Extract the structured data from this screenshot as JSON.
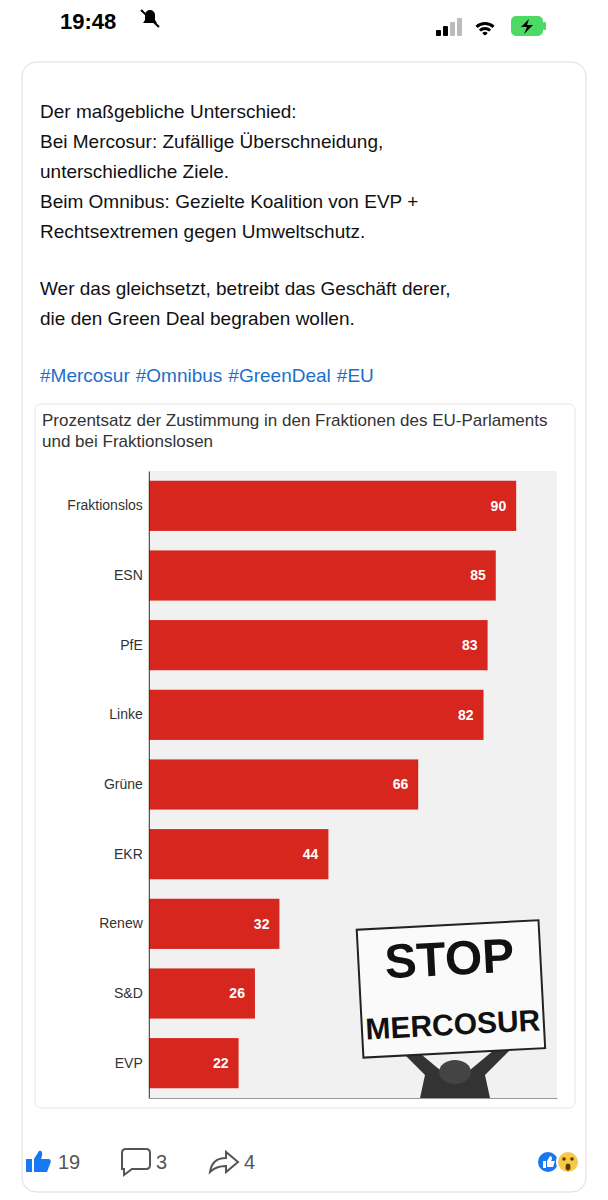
{
  "status_bar": {
    "time": "19:48"
  },
  "post": {
    "paragraphs": [
      [
        "Der maßgebliche Unterschied:",
        "Bei Mercosur: Zufällige Überschneidung,",
        "unterschiedliche Ziele.",
        "Beim Omnibus: Gezielte Koalition von EVP +",
        "Rechtsextremen gegen Umweltschutz."
      ],
      [
        "Wer das gleichsetzt, betreibt das Geschäft derer,",
        "die den Green Deal begraben wollen."
      ]
    ],
    "hashtags": [
      "#Mercosur",
      "#Omnibus",
      "#GreenDeal",
      "#EU"
    ],
    "likes": 19,
    "comments": 3,
    "shares": 4
  },
  "chart_data": {
    "type": "bar",
    "orientation": "horizontal",
    "title": "Prozentsatz der Zustimmung in den Fraktionen des EU-Parlaments und bei Fraktionslosen",
    "categories": [
      "Fraktionslos",
      "ESN",
      "PfE",
      "Linke",
      "Grüne",
      "EKR",
      "Renew",
      "S&D",
      "EVP"
    ],
    "values": [
      90,
      85,
      83,
      82,
      66,
      44,
      32,
      26,
      22
    ],
    "color": "#d7261e",
    "xlim": [
      0,
      100
    ],
    "data_labels": true,
    "tick_labels": "y"
  },
  "photo_sign": [
    "STOP",
    "MERCOSUR"
  ]
}
